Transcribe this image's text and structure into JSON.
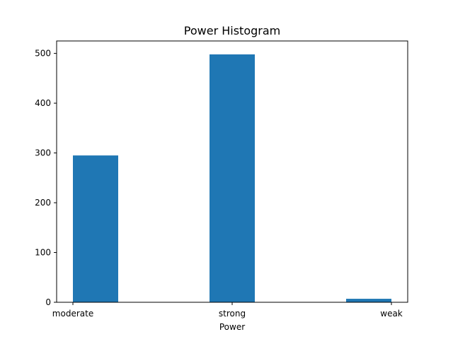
{
  "chart_data": {
    "type": "bar",
    "title": "Power Histogram",
    "xlabel": "Power",
    "ylabel": "",
    "categories": [
      "moderate",
      "strong",
      "weak"
    ],
    "values": [
      295,
      498,
      7
    ],
    "ylim": [
      0,
      525
    ],
    "yticks": [
      0,
      100,
      200,
      300,
      400,
      500
    ],
    "bar_color": "#1f77b4",
    "grid": false,
    "legend": "none"
  }
}
